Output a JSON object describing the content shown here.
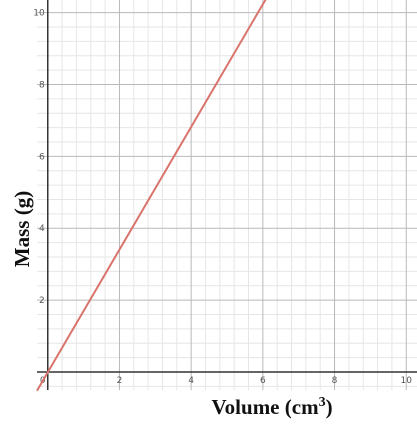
{
  "chart_data": {
    "type": "line",
    "title": "",
    "xlabel": "Volume (cm",
    "xlabel_sup": "3",
    "xlabel_close": ")",
    "ylabel": "Mass (g)",
    "xlim": [
      -0.3,
      10.3
    ],
    "ylim": [
      -0.5,
      10.35
    ],
    "xticks": [
      0,
      2,
      4,
      6,
      8,
      10
    ],
    "yticks": [
      2,
      4,
      6,
      8,
      10
    ],
    "x_tick_labels": [
      "0",
      "2",
      "4",
      "6",
      "8",
      "10"
    ],
    "y_tick_labels": [
      "2",
      "4",
      "6",
      "8",
      "10"
    ],
    "grid": true,
    "minor_grid_step": 0.4,
    "series": [
      {
        "x": [
          -0.3,
          6.1
        ],
        "y": [
          -0.52,
          10.4
        ],
        "color": "#d9746c"
      }
    ],
    "colors": {
      "line": "#d9746c",
      "major_grid": "#b9b9b9",
      "minor_grid": "#e6e6e6",
      "axis": "#333333"
    }
  }
}
